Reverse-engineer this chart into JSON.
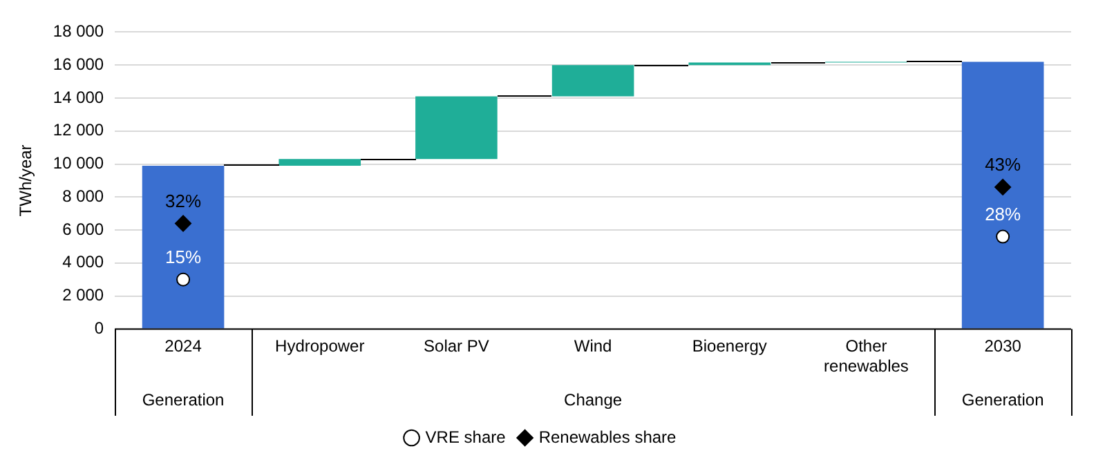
{
  "chart_data": {
    "type": "bar",
    "ylabel": "TWh/year",
    "categories": [
      "2024",
      "Hydropower",
      "Solar PV",
      "Wind",
      "Bioenergy",
      "Other renewables",
      "2030"
    ],
    "values": [
      9900,
      400,
      3800,
      1900,
      150,
      50,
      16200
    ],
    "base": [
      0,
      9900,
      10300,
      14100,
      16000,
      16150,
      0
    ],
    "colors": [
      "#3a6fd0",
      "#1fae98",
      "#1fae98",
      "#1fae98",
      "#1fae98",
      "#1fae98",
      "#3a6fd0"
    ],
    "series": [
      {
        "type": "scatter",
        "name": "VRE share",
        "color": "#ffffff",
        "marker": "circle",
        "axis": "y2",
        "values": [
          15,
          null,
          null,
          null,
          null,
          null,
          28
        ],
        "value_labels": [
          "15%",
          null,
          null,
          null,
          null,
          null,
          "28%"
        ]
      },
      {
        "type": "scatter",
        "name": "Renewables share",
        "color": "#000000",
        "marker": "diamond",
        "axis": "y2",
        "values": [
          32,
          null,
          null,
          null,
          null,
          null,
          43
        ],
        "value_labels": [
          "32%",
          null,
          null,
          null,
          null,
          null,
          "43%"
        ]
      }
    ],
    "ylim": [
      0,
      18000
    ],
    "yticks": [
      {
        "value": 0,
        "label": "0"
      },
      {
        "value": 2000,
        "label": "2 000"
      },
      {
        "value": 4000,
        "label": "4 000"
      },
      {
        "value": 6000,
        "label": "6 000"
      },
      {
        "value": 8000,
        "label": "8 000"
      },
      {
        "value": 10000,
        "label": "10 000"
      },
      {
        "value": 12000,
        "label": "12 000"
      },
      {
        "value": 14000,
        "label": "14 000"
      },
      {
        "value": 16000,
        "label": "16 000"
      },
      {
        "value": 18000,
        "label": "18 000"
      }
    ],
    "y2lim": [
      0,
      90
    ],
    "grid": "y",
    "legend": "bottom",
    "annotations": [
      "Generation",
      "Change",
      "Generation"
    ]
  }
}
